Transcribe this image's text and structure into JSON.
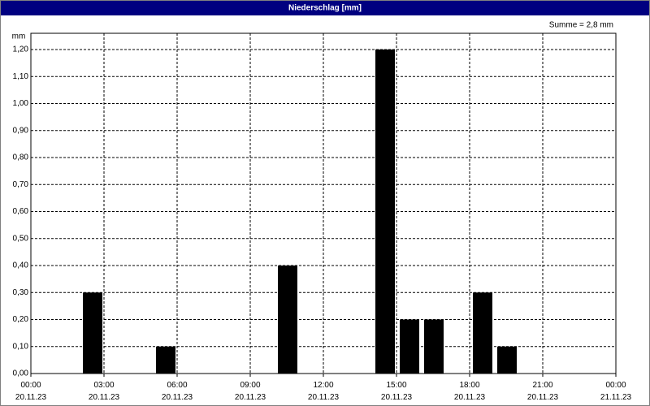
{
  "title": "Niederschlag [mm]",
  "chart_data": {
    "type": "bar",
    "y_unit": "mm",
    "annotation": "Summe = 2,8 mm",
    "x": [
      3,
      6,
      11,
      15,
      16,
      17,
      19,
      20
    ],
    "values": [
      0.3,
      0.1,
      0.4,
      1.2,
      0.2,
      0.2,
      0.3,
      0.1
    ],
    "color": "#000000",
    "xlim": [
      0,
      24
    ],
    "xticks": [
      {
        "value": 0,
        "label": "00:00\n20.11.23"
      },
      {
        "value": 3,
        "label": "03:00\n20.11.23"
      },
      {
        "value": 6,
        "label": "06:00\n20.11.23"
      },
      {
        "value": 9,
        "label": "09:00\n20.11.23"
      },
      {
        "value": 12,
        "label": "12:00\n20.11.23"
      },
      {
        "value": 15,
        "label": "15:00\n20.11.23"
      },
      {
        "value": 18,
        "label": "18:00\n20.11.23"
      },
      {
        "value": 21,
        "label": "21:00\n20.11.23"
      },
      {
        "value": 24,
        "label": "00:00\n21.11.23"
      }
    ],
    "ylim": [
      0,
      1.26
    ],
    "yticks": [
      {
        "value": 0,
        "label": "0,00"
      },
      {
        "value": 0.1,
        "label": "0,10"
      },
      {
        "value": 0.2,
        "label": "0,20"
      },
      {
        "value": 0.3,
        "label": "0,30"
      },
      {
        "value": 0.4,
        "label": "0,40"
      },
      {
        "value": 0.5,
        "label": "0,50"
      },
      {
        "value": 0.6,
        "label": "0,60"
      },
      {
        "value": 0.7,
        "label": "0,70"
      },
      {
        "value": 0.8,
        "label": "0,80"
      },
      {
        "value": 0.9,
        "label": "0,90"
      },
      {
        "value": 1.0,
        "label": "1,00"
      },
      {
        "value": 1.1,
        "label": "1,10"
      },
      {
        "value": 1.2,
        "label": "1,20"
      }
    ],
    "grid": true
  }
}
